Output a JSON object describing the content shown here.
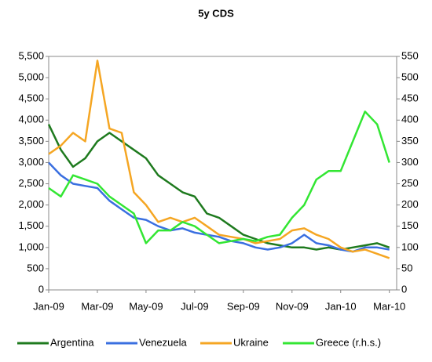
{
  "chart_data": {
    "type": "line",
    "title": "5y CDS",
    "x": [
      0,
      0.5,
      1,
      1.5,
      2,
      2.5,
      3,
      3.5,
      4,
      4.5,
      5,
      5.5,
      6,
      6.5,
      7,
      7.5,
      8,
      8.5,
      9,
      9.5,
      10,
      10.5,
      11,
      11.5,
      12,
      12.5,
      13,
      13.5,
      14
    ],
    "xlim": [
      0,
      14.3
    ],
    "xticks": [
      {
        "value": 0,
        "label": "Jan-09"
      },
      {
        "value": 2,
        "label": "Mar-09"
      },
      {
        "value": 4,
        "label": "May-09"
      },
      {
        "value": 6,
        "label": "Jul-09"
      },
      {
        "value": 8,
        "label": "Sep-09"
      },
      {
        "value": 10,
        "label": "Nov-09"
      },
      {
        "value": 12,
        "label": "Jan-10"
      },
      {
        "value": 14,
        "label": "Mar-10"
      }
    ],
    "ylim": [
      0,
      5500
    ],
    "yticks": [
      0,
      500,
      {
        "value": 1000,
        "label": "1,000"
      },
      {
        "value": 1500,
        "label": "1,500"
      },
      {
        "value": 2000,
        "label": "2,000"
      },
      {
        "value": 2500,
        "label": "2,500"
      },
      {
        "value": 3000,
        "label": "3,000"
      },
      {
        "value": 3500,
        "label": "3,500"
      },
      {
        "value": 4000,
        "label": "4,000"
      },
      {
        "value": 4500,
        "label": "4,500"
      },
      {
        "value": 5000,
        "label": "5,000"
      },
      {
        "value": 5500,
        "label": "5,500"
      }
    ],
    "y2lim": [
      0,
      550
    ],
    "y2ticks": [
      0,
      50,
      100,
      150,
      200,
      250,
      300,
      350,
      400,
      450,
      500,
      550
    ],
    "series": [
      {
        "name": "Argentina",
        "color": "#1e7a1e",
        "values": [
          3900,
          3300,
          2900,
          3100,
          3500,
          3700,
          3500,
          3300,
          3100,
          2700,
          2500,
          2300,
          2200,
          1800,
          1700,
          1500,
          1300,
          1200,
          1100,
          1050,
          1000,
          1000,
          950,
          1000,
          950,
          1000,
          1050,
          1100,
          1000
        ]
      },
      {
        "name": "Venezuela",
        "color": "#3a6fe0",
        "values": [
          3000,
          2700,
          2500,
          2450,
          2400,
          2100,
          1900,
          1700,
          1650,
          1500,
          1400,
          1450,
          1350,
          1300,
          1250,
          1150,
          1100,
          1000,
          950,
          1000,
          1100,
          1300,
          1100,
          1050,
          950,
          900,
          1000,
          1000,
          950
        ]
      },
      {
        "name": "Ukraine",
        "color": "#f5a623",
        "values": [
          3200,
          3400,
          3700,
          3500,
          5400,
          3800,
          3700,
          2300,
          2000,
          1600,
          1700,
          1600,
          1700,
          1500,
          1300,
          1250,
          1200,
          1100,
          1150,
          1200,
          1400,
          1450,
          1300,
          1200,
          1000,
          900,
          950,
          850,
          750
        ]
      },
      {
        "name": "Greece (r.h.s.)",
        "color": "#33e633",
        "axis": "y2",
        "values": [
          240,
          220,
          270,
          260,
          250,
          220,
          200,
          180,
          110,
          140,
          140,
          160,
          150,
          130,
          110,
          115,
          120,
          115,
          125,
          130,
          170,
          200,
          260,
          280,
          280,
          350,
          420,
          390,
          300
        ]
      }
    ]
  }
}
